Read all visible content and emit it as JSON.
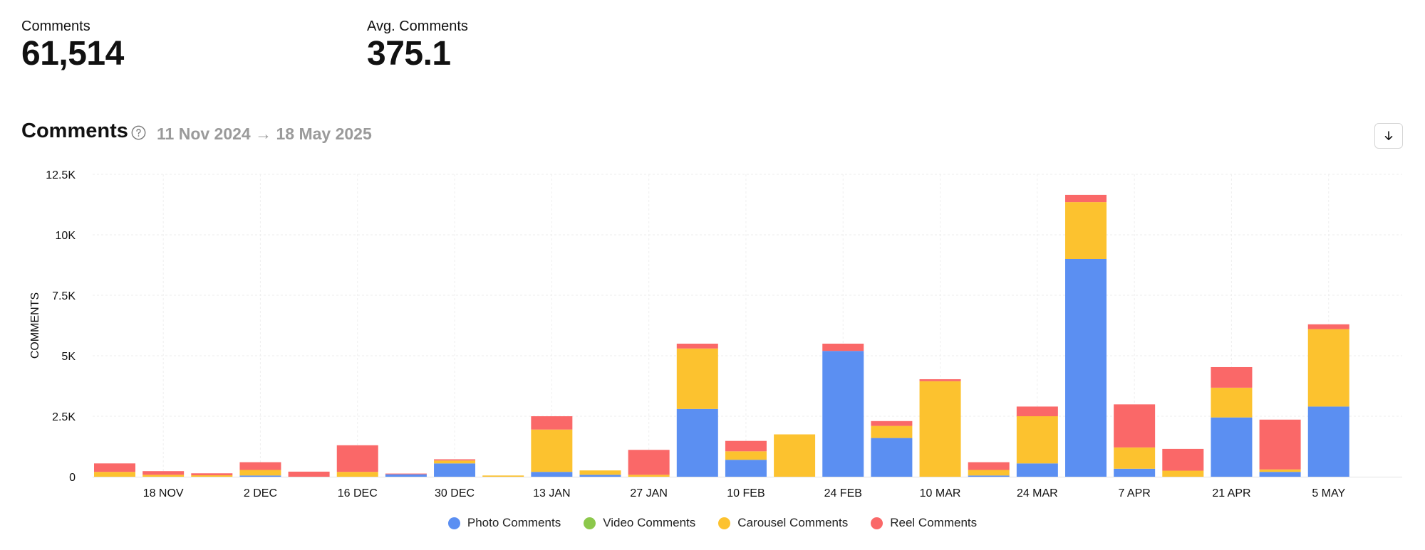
{
  "stats": [
    {
      "label": "Comments",
      "value": "61,514"
    },
    {
      "label": "Avg. Comments",
      "value": "375.1"
    }
  ],
  "section": {
    "title": "Comments",
    "date_range": "11 Nov 2024 → 18 May 2025",
    "help_icon": "question-circle-icon",
    "download_icon": "download-arrow-icon"
  },
  "chart_data": {
    "type": "bar",
    "stacked": true,
    "ylabel": "COMMENTS",
    "ylim": [
      0,
      12500
    ],
    "yticks": [
      0,
      2500,
      5000,
      7500,
      10000,
      12500
    ],
    "ytick_labels": [
      "0",
      "2.5K",
      "5K",
      "7.5K",
      "10K",
      "12.5K"
    ],
    "xtick_labels": [
      {
        "label": "18 NOV",
        "index": 1
      },
      {
        "label": "2 DEC",
        "index": 3
      },
      {
        "label": "16 DEC",
        "index": 5
      },
      {
        "label": "30 DEC",
        "index": 7
      },
      {
        "label": "13 JAN",
        "index": 9
      },
      {
        "label": "27 JAN",
        "index": 11
      },
      {
        "label": "10 FEB",
        "index": 13
      },
      {
        "label": "24 FEB",
        "index": 15
      },
      {
        "label": "10 MAR",
        "index": 17
      },
      {
        "label": "24 MAR",
        "index": 19
      },
      {
        "label": "7 APR",
        "index": 21
      },
      {
        "label": "21 APR",
        "index": 23
      },
      {
        "label": "5 MAY",
        "index": 25
      }
    ],
    "bar_count": 27,
    "grid": true,
    "legend_position": "bottom",
    "series": [
      {
        "name": "Photo Comments",
        "color": "#5b8ff2",
        "values": [
          0,
          0,
          0,
          50,
          0,
          0,
          100,
          550,
          0,
          200,
          80,
          0,
          2800,
          700,
          0,
          5200,
          1600,
          0,
          50,
          550,
          9000,
          330,
          0,
          2450,
          200,
          2900,
          0
        ]
      },
      {
        "name": "Video Comments",
        "color": "#8cc84b",
        "values": [
          0,
          0,
          0,
          0,
          0,
          0,
          0,
          0,
          0,
          0,
          0,
          0,
          0,
          0,
          0,
          0,
          0,
          0,
          0,
          0,
          0,
          0,
          0,
          0,
          0,
          0,
          0
        ]
      },
      {
        "name": "Carousel Comments",
        "color": "#fcc22f",
        "values": [
          200,
          80,
          60,
          230,
          0,
          200,
          0,
          120,
          50,
          1750,
          180,
          80,
          2500,
          350,
          1750,
          0,
          500,
          3950,
          230,
          1950,
          2350,
          880,
          250,
          1230,
          100,
          3200,
          0
        ]
      },
      {
        "name": "Reel Comments",
        "color": "#fa6868",
        "values": [
          350,
          150,
          80,
          320,
          210,
          1100,
          30,
          50,
          0,
          550,
          0,
          1030,
          200,
          430,
          0,
          300,
          200,
          80,
          320,
          400,
          300,
          1780,
          900,
          850,
          2060,
          200,
          0
        ]
      }
    ]
  }
}
